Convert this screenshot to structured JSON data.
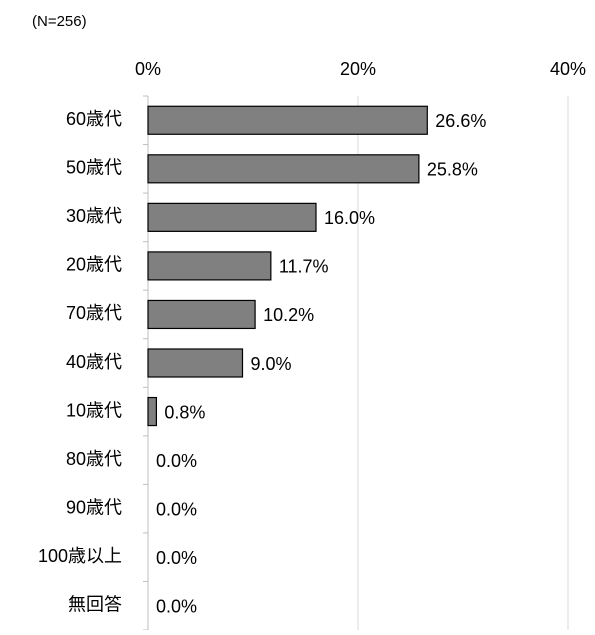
{
  "chart_data": {
    "type": "bar",
    "orientation": "horizontal",
    "subtitle": "(N=256)",
    "categories": [
      "60歳代",
      "50歳代",
      "30歳代",
      "20歳代",
      "70歳代",
      "40歳代",
      "10歳代",
      "80歳代",
      "90歳代",
      "100歳以上",
      "無回答"
    ],
    "values": [
      26.6,
      25.8,
      16.0,
      11.7,
      10.2,
      9.0,
      0.8,
      0.0,
      0.0,
      0.0,
      0.0
    ],
    "value_labels": [
      "26.6%",
      "25.8%",
      "16.0%",
      "11.7%",
      "10.2%",
      "9.0%",
      "0.8%",
      "0.0%",
      "0.0%",
      "0.0%",
      "0.0%"
    ],
    "color": "#808080",
    "xlim": [
      0,
      40
    ],
    "xticks": [
      {
        "value": 0,
        "label": "0%"
      },
      {
        "value": 20,
        "label": "20%"
      },
      {
        "value": 40,
        "label": "40%"
      }
    ],
    "grid": true
  }
}
